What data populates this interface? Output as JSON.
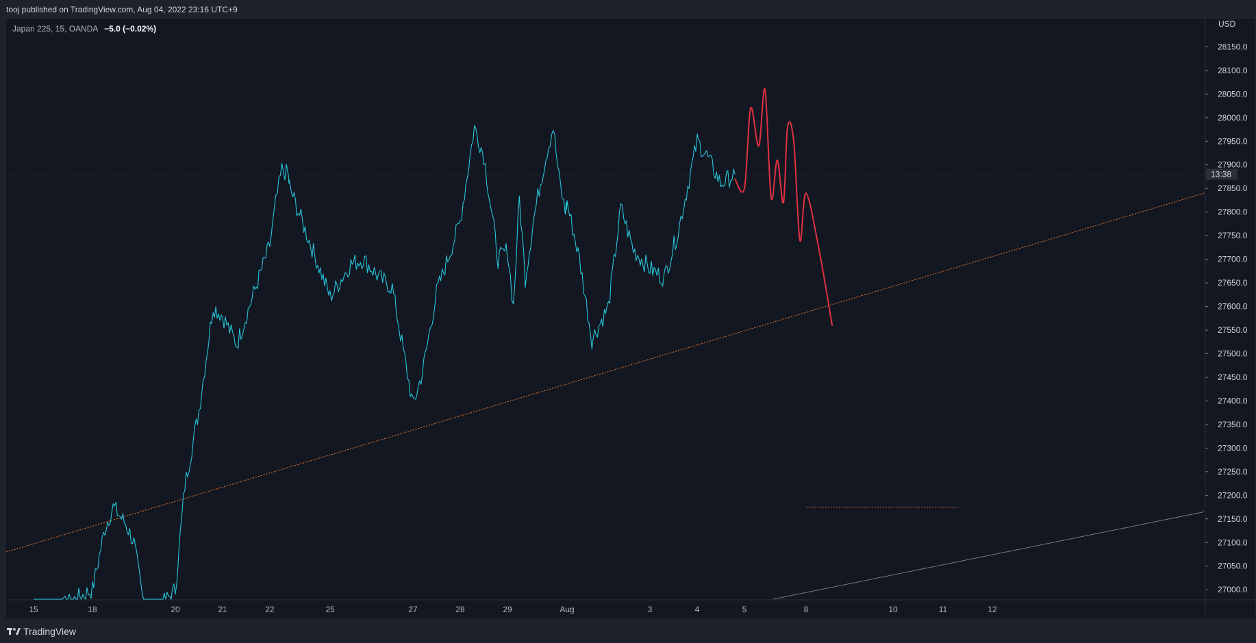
{
  "header": {
    "published": "tooj published on TradingView.com, Aug 04, 2022 23:16 UTC+9"
  },
  "legend": {
    "symbol": "Japan 225, 15, OANDA",
    "change": "−5.0 (−0.02%)"
  },
  "footer": {
    "brand": "TradingView"
  },
  "colors": {
    "background": "#131722",
    "candles": "#26c6da",
    "projection": "#e03141",
    "trendline": "#f57c2a",
    "support_line": "#787b86"
  },
  "chart_data": {
    "type": "line",
    "currency_label": "USD",
    "current_time_label": "13:38",
    "y_ticks": [
      "27000.0",
      "27050.0",
      "27100.0",
      "27150.0",
      "27200.0",
      "27250.0",
      "27300.0",
      "27350.0",
      "27400.0",
      "27450.0",
      "27500.0",
      "27550.0",
      "27600.0",
      "27650.0",
      "27700.0",
      "27750.0",
      "27800.0",
      "27850.0",
      "27900.0",
      "27950.0",
      "28000.0",
      "28050.0",
      "28100.0",
      "28150.0"
    ],
    "x_ticks": [
      "15",
      "18",
      "20",
      "21",
      "22",
      "25",
      "27",
      "28",
      "29",
      "Aug",
      "3",
      "4",
      "5",
      "8",
      "10",
      "11",
      "12"
    ],
    "ylim": [
      26980,
      28210
    ],
    "price_series": {
      "name": "",
      "points": [
        [
          "15",
          26930
        ],
        [
          "18",
          27000
        ],
        [
          "18.3",
          27130
        ],
        [
          "18.5",
          27175
        ],
        [
          "18.8",
          27140
        ],
        [
          "19",
          27100
        ],
        [
          "19.3",
          26930
        ],
        [
          "20",
          27000
        ],
        [
          "20.2",
          27220
        ],
        [
          "20.5",
          27380
        ],
        [
          "20.8",
          27600
        ],
        [
          "21",
          27580
        ],
        [
          "21.3",
          27520
        ],
        [
          "21.6",
          27610
        ],
        [
          "22",
          27730
        ],
        [
          "22.3",
          27820
        ],
        [
          "22.6",
          27890
        ],
        [
          "22.9",
          27880
        ],
        [
          "23",
          27850
        ],
        [
          "25",
          27620
        ],
        [
          "25.5",
          27690
        ],
        [
          "25.8",
          27700
        ],
        [
          "26.2",
          27660
        ],
        [
          "26.5",
          27640
        ],
        [
          "27",
          27390
        ],
        [
          "27.2",
          27460
        ],
        [
          "27.5",
          27630
        ],
        [
          "28",
          27780
        ],
        [
          "28.3",
          27980
        ],
        [
          "28.5",
          27920
        ],
        [
          "28.8",
          27700
        ],
        [
          "29",
          27720
        ],
        [
          "29.3",
          27600
        ],
        [
          "29.6",
          27830
        ],
        [
          "29.9",
          27660
        ],
        [
          "30.3",
          27780
        ],
        [
          "30.6",
          27850
        ],
        [
          "31",
          27930
        ],
        [
          "31.3",
          27980
        ],
        [
          "31.6",
          27870
        ],
        [
          "31.9",
          27800
        ],
        [
          "1",
          27820
        ],
        [
          "1.3",
          27700
        ],
        [
          "1.6",
          27530
        ],
        [
          "2",
          27600
        ],
        [
          "2.3",
          27810
        ],
        [
          "2.6",
          27720
        ],
        [
          "3",
          27680
        ],
        [
          "3.3",
          27660
        ],
        [
          "3.6",
          27760
        ],
        [
          "4",
          27950
        ],
        [
          "4.2",
          27920
        ],
        [
          "4.5",
          27860
        ],
        [
          "4.8",
          27880
        ]
      ]
    },
    "projection_series": {
      "name": "",
      "points": [
        [
          "4.8",
          27870
        ],
        [
          "5",
          27850
        ],
        [
          "5.3",
          28020
        ],
        [
          "5.7",
          27940
        ],
        [
          "6",
          28060
        ],
        [
          "6.3",
          27830
        ],
        [
          "6.6",
          27910
        ],
        [
          "6.9",
          27820
        ],
        [
          "7.1",
          27980
        ],
        [
          "7.4",
          27950
        ],
        [
          "7.7",
          27740
        ],
        [
          "8",
          27840
        ],
        [
          "8.3",
          27720
        ],
        [
          "8.6",
          27560
        ]
      ]
    },
    "trendline": {
      "from": [
        "15",
        27080
      ],
      "to": [
        "12",
        27840
      ]
    },
    "support_line": {
      "from": [
        "6.4",
        26980
      ],
      "to": [
        "12",
        27165
      ]
    },
    "horizontal_line": {
      "value": 27175,
      "from": "8",
      "to": "11.3"
    },
    "grid": false,
    "legend_position": "top-left"
  }
}
